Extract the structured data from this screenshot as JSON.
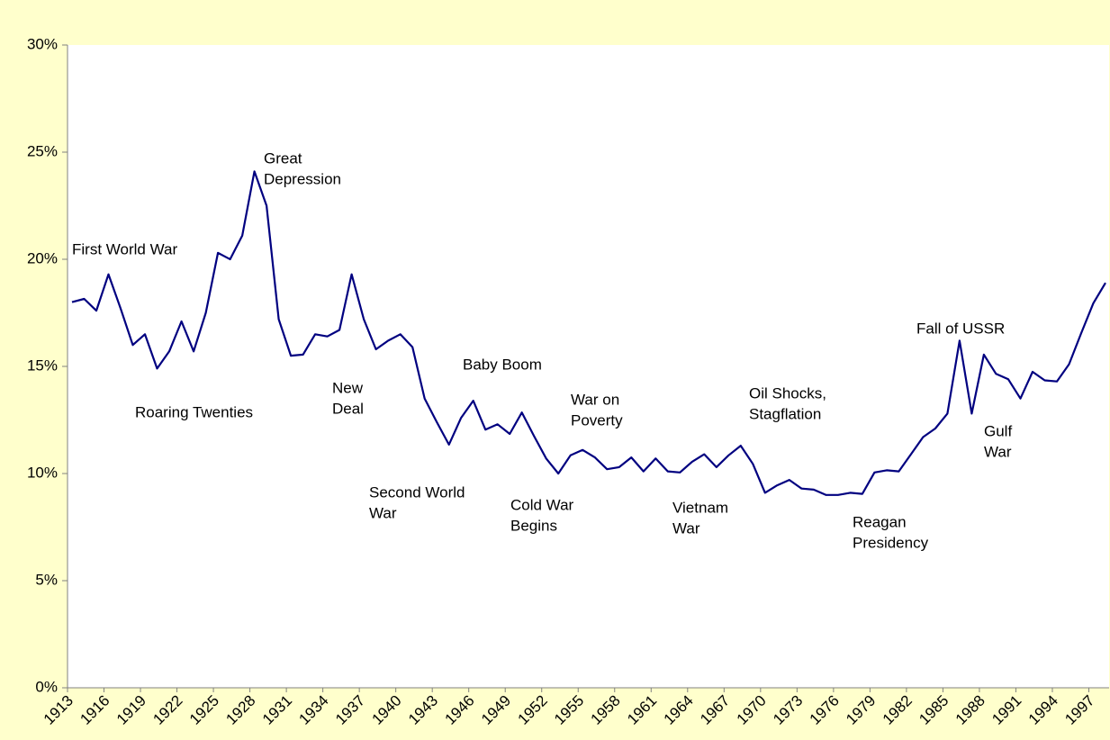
{
  "chart_data": {
    "type": "line",
    "categories": [
      "1913",
      null,
      null,
      "1916",
      null,
      null,
      "1919",
      null,
      null,
      "1922",
      null,
      null,
      "1925",
      null,
      null,
      "1928",
      null,
      null,
      "1931",
      null,
      null,
      "1934",
      null,
      null,
      "1937",
      null,
      null,
      "1940",
      null,
      null,
      "1943",
      null,
      null,
      "1946",
      null,
      null,
      "1949",
      null,
      null,
      "1952",
      null,
      null,
      "1955",
      null,
      null,
      "1958",
      null,
      null,
      "1961",
      null,
      null,
      "1964",
      null,
      null,
      "1967",
      null,
      null,
      "1970",
      null,
      null,
      "1973",
      null,
      null,
      "1976",
      null,
      null,
      "1979",
      null,
      null,
      "1982",
      null,
      null,
      "1985",
      null,
      null,
      "1988",
      null,
      null,
      "1991",
      null,
      null,
      "1994",
      null,
      null,
      "1997",
      null
    ],
    "values": [
      18.0,
      18.15,
      17.6,
      19.3,
      17.7,
      16.0,
      16.5,
      14.9,
      15.7,
      17.1,
      15.7,
      17.5,
      20.3,
      20.0,
      21.1,
      24.1,
      22.5,
      17.2,
      15.5,
      15.55,
      16.5,
      16.4,
      16.7,
      19.3,
      17.2,
      15.8,
      16.2,
      16.5,
      15.9,
      13.5,
      12.4,
      11.35,
      12.6,
      13.4,
      12.05,
      12.3,
      11.85,
      12.85,
      11.75,
      10.7,
      10.0,
      10.85,
      11.1,
      10.75,
      10.2,
      10.3,
      10.75,
      10.1,
      10.7,
      10.1,
      10.05,
      10.55,
      10.9,
      10.3,
      10.85,
      11.3,
      10.45,
      9.1,
      9.45,
      9.7,
      9.3,
      9.25,
      9.0,
      9.0,
      9.1,
      9.05,
      10.05,
      10.15,
      10.1,
      10.9,
      11.7,
      12.1,
      12.8,
      16.2,
      12.8,
      15.55,
      14.65,
      14.4,
      13.5,
      14.75,
      14.35,
      14.3,
      15.1,
      16.55,
      17.95,
      18.9
    ],
    "color": "#000080",
    "ylim": [
      0,
      30
    ],
    "yticks": [
      {
        "value": 0,
        "label": "0%"
      },
      {
        "value": 5,
        "label": "5%"
      },
      {
        "value": 10,
        "label": "10%"
      },
      {
        "value": 15,
        "label": "15%"
      },
      {
        "value": 20,
        "label": "20%"
      },
      {
        "value": 25,
        "label": "25%"
      },
      {
        "value": 30,
        "label": "30%"
      }
    ],
    "annotations": [
      {
        "lines": [
          "First World War"
        ]
      },
      {
        "lines": [
          "Roaring Twenties"
        ]
      },
      {
        "lines": [
          "Great",
          "Depression"
        ]
      },
      {
        "lines": [
          "New",
          "Deal"
        ]
      },
      {
        "lines": [
          "Second World",
          "War"
        ]
      },
      {
        "lines": [
          "Baby Boom"
        ]
      },
      {
        "lines": [
          "Cold War",
          "Begins"
        ]
      },
      {
        "lines": [
          "War on",
          "Poverty"
        ]
      },
      {
        "lines": [
          "Vietnam",
          "War"
        ]
      },
      {
        "lines": [
          "Oil Shocks,",
          "Stagflation"
        ]
      },
      {
        "lines": [
          "Reagan",
          "Presidency"
        ]
      },
      {
        "lines": [
          "Fall of USSR"
        ]
      },
      {
        "lines": [
          "Gulf",
          "War"
        ]
      }
    ]
  }
}
